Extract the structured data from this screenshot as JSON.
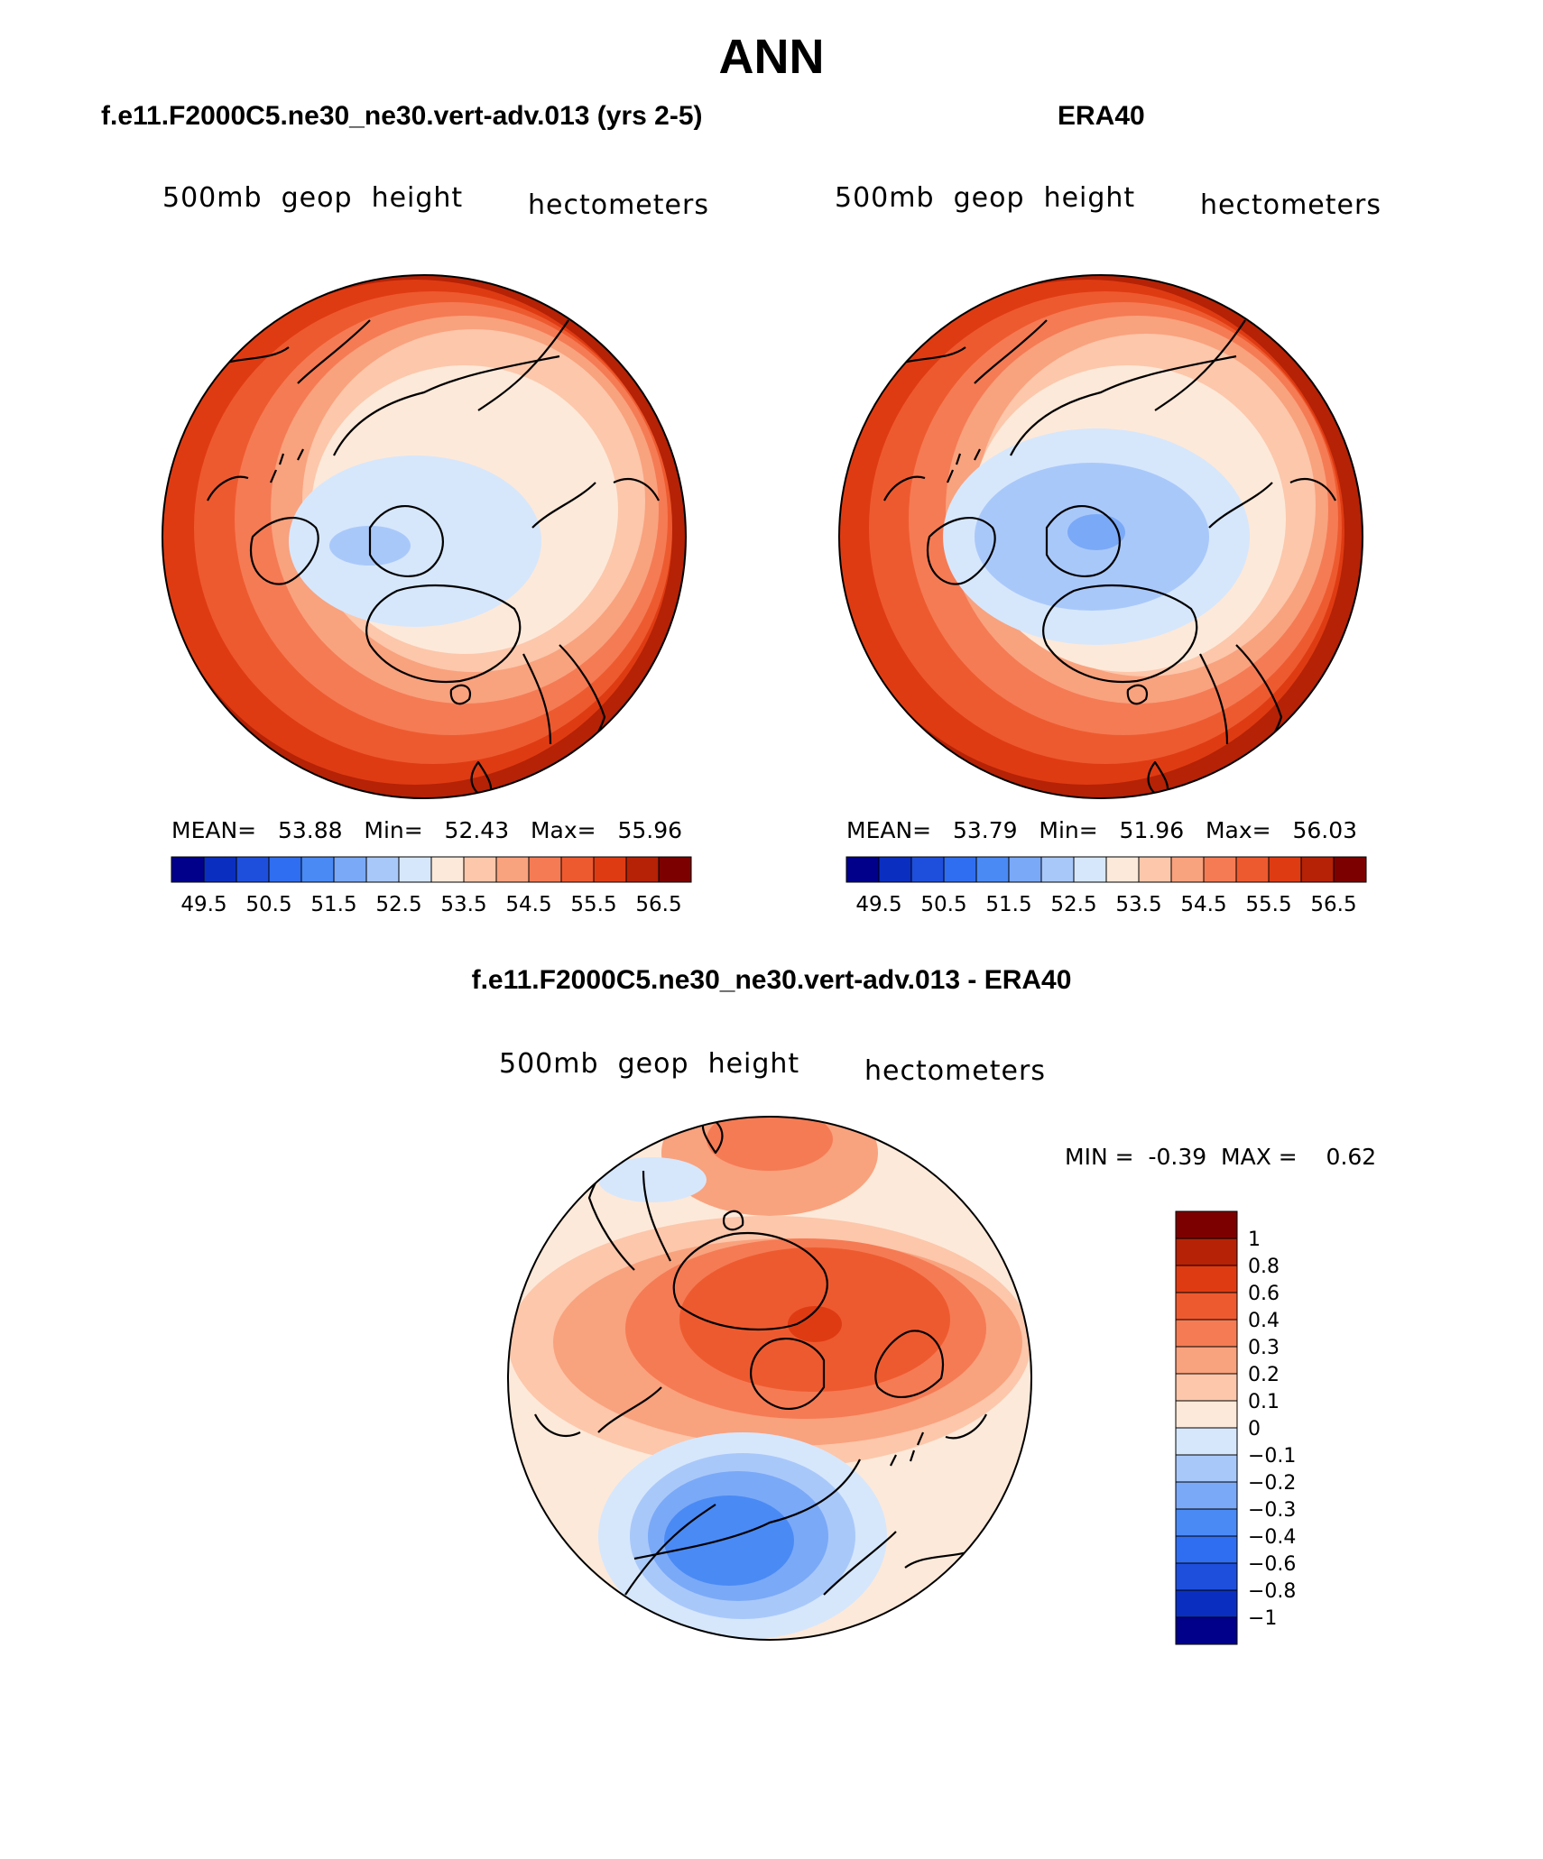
{
  "main_title": "ANN",
  "panels": {
    "model": {
      "title": "f.e11.F2000C5.ne30_ne30.vert-adv.013 (yrs 2-5)",
      "variable": "500mb  geop  height",
      "units": "hectometers",
      "mean_label": "MEAN=",
      "mean": "53.88",
      "min_label": "Min=",
      "min": "52.43",
      "max_label": "Max=",
      "max": "55.96"
    },
    "obs": {
      "title": "ERA40",
      "variable": "500mb  geop  height",
      "units": "hectometers",
      "mean_label": "MEAN=",
      "mean": "53.79",
      "min_label": "Min=",
      "min": "51.96",
      "max_label": "Max=",
      "max": "56.03"
    },
    "diff": {
      "title": "f.e11.F2000C5.ne30_ne30.vert-adv.013 - ERA40",
      "variable": "500mb  geop  height",
      "units": "hectometers",
      "min_label": "MIN =",
      "min": "-0.39",
      "max_label": "MAX =",
      "max": "0.62"
    }
  },
  "colorbars": {
    "abs_colors": [
      "#00008b",
      "#0a2fc0",
      "#1e4fdc",
      "#2f6ef0",
      "#4a8af5",
      "#7aa9f7",
      "#a9c8fa",
      "#d6e7fc",
      "#fde9d9",
      "#fcc7ab",
      "#f9a27e",
      "#f57b54",
      "#ee5a2f",
      "#df3b13",
      "#b52206",
      "#7d0000"
    ],
    "abs_labels": [
      "49.5",
      "50.5",
      "51.5",
      "52.5",
      "53.5",
      "54.5",
      "55.5",
      "56.5"
    ],
    "diff_colors": [
      "#7d0000",
      "#b52206",
      "#df3b13",
      "#ee5a2f",
      "#f57b54",
      "#f9a27e",
      "#fcc7ab",
      "#fde9d9",
      "#d6e7fc",
      "#a9c8fa",
      "#7aa9f7",
      "#4a8af5",
      "#2f6ef0",
      "#1e4fdc",
      "#0a2fc0",
      "#00008b"
    ],
    "diff_labels": [
      "1",
      "0.8",
      "0.6",
      "0.4",
      "0.3",
      "0.2",
      "0.1",
      "0",
      "−0.1",
      "−0.2",
      "−0.3",
      "−0.4",
      "−0.6",
      "−0.8",
      "−1"
    ]
  },
  "chart_data": [
    {
      "type": "map",
      "title": "f.e11.F2000C5.ne30_ne30.vert-adv.013 (yrs 2-5)",
      "field": "500mb geop height",
      "units": "hectometers",
      "projection": "north polar stereographic",
      "mean": 53.88,
      "min": 52.43,
      "max": 55.96,
      "contour_levels": [
        49.5,
        50,
        50.5,
        51,
        51.5,
        52,
        52.5,
        53,
        53.5,
        54,
        54.5,
        55,
        55.5,
        56,
        56.5
      ]
    },
    {
      "type": "map",
      "title": "ERA40",
      "field": "500mb geop height",
      "units": "hectometers",
      "projection": "north polar stereographic",
      "mean": 53.79,
      "min": 51.96,
      "max": 56.03,
      "contour_levels": [
        49.5,
        50,
        50.5,
        51,
        51.5,
        52,
        52.5,
        53,
        53.5,
        54,
        54.5,
        55,
        55.5,
        56,
        56.5
      ]
    },
    {
      "type": "map",
      "title": "f.e11.F2000C5.ne30_ne30.vert-adv.013 - ERA40",
      "field": "500mb geop height difference",
      "units": "hectometers",
      "projection": "north polar stereographic",
      "min": -0.39,
      "max": 0.62,
      "contour_levels": [
        -1,
        -0.8,
        -0.6,
        -0.4,
        -0.3,
        -0.2,
        -0.1,
        0,
        0.1,
        0.2,
        0.3,
        0.4,
        0.6,
        0.8,
        1
      ]
    }
  ]
}
